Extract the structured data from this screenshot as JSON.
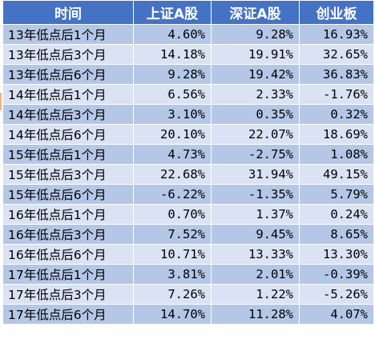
{
  "table": {
    "headers": [
      "时间",
      "上证A股",
      "深证A股",
      "创业板"
    ],
    "rows": [
      [
        "13年低点后1个月",
        "4.60%",
        "9.28%",
        "16.93%"
      ],
      [
        "13年低点后3个月",
        "14.18%",
        "19.91%",
        "32.65%"
      ],
      [
        "13年低点后6个月",
        "9.28%",
        "19.42%",
        "36.83%"
      ],
      [
        "14年低点后1个月",
        "6.56%",
        "2.33%",
        "-1.76%"
      ],
      [
        "14年低点后3个月",
        "3.10%",
        "0.35%",
        "0.32%"
      ],
      [
        "14年低点后6个月",
        "20.10%",
        "22.07%",
        "18.69%"
      ],
      [
        "15年低点后1个月",
        "4.73%",
        "-2.75%",
        "1.08%"
      ],
      [
        "15年低点后3个月",
        "22.68%",
        "31.94%",
        "49.15%"
      ],
      [
        "15年低点后6个月",
        "-6.22%",
        "-1.35%",
        "5.79%"
      ],
      [
        "16年低点后1个月",
        "0.70%",
        "1.37%",
        "0.24%"
      ],
      [
        "16年低点后3个月",
        "7.52%",
        "9.45%",
        "8.65%"
      ],
      [
        "16年低点后6个月",
        "10.71%",
        "13.33%",
        "13.30%"
      ],
      [
        "17年低点后1个月",
        "3.81%",
        "2.01%",
        "-0.39%"
      ],
      [
        "17年低点后3个月",
        "7.26%",
        "1.22%",
        "-5.26%"
      ],
      [
        "17年低点后6个月",
        "14.70%",
        "11.28%",
        "4.07%"
      ]
    ]
  },
  "colors": {
    "header_bg": "#4472c4",
    "header_text": "#ffffff",
    "row_dark": "#b4c7e7",
    "row_light": "#dae3f3",
    "selection_mark": "#f4b183"
  }
}
